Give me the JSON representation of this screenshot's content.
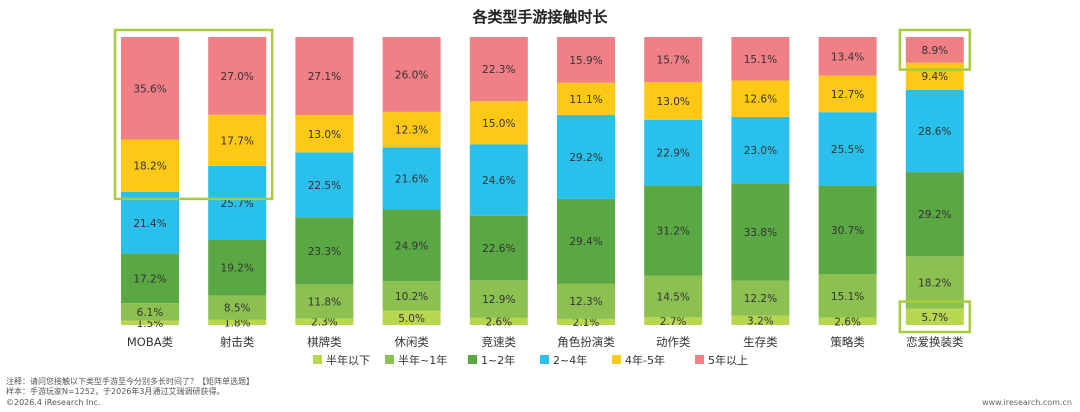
{
  "chart_data": {
    "type": "bar",
    "stacked": true,
    "percent": true,
    "title": "各类型手游接触时长",
    "categories": [
      "MOBA类",
      "射击类",
      "棋牌类",
      "休闲类",
      "竞速类",
      "角色扮演类",
      "动作类",
      "生存类",
      "策略类",
      "恋爱换装类"
    ],
    "series": [
      {
        "name": "半年以下",
        "color": "#b9d651",
        "values": [
          1.5,
          1.8,
          2.3,
          5.0,
          2.6,
          2.1,
          2.7,
          3.2,
          2.6,
          5.7
        ]
      },
      {
        "name": "半年~1年",
        "color": "#8cc152",
        "values": [
          6.1,
          8.5,
          11.8,
          10.2,
          12.9,
          12.3,
          14.5,
          12.2,
          15.1,
          18.2
        ]
      },
      {
        "name": "1~2年",
        "color": "#5aa844",
        "values": [
          17.2,
          19.2,
          23.3,
          24.9,
          22.6,
          29.4,
          31.2,
          33.8,
          30.7,
          29.2
        ]
      },
      {
        "name": "2~4年",
        "color": "#29c1ec",
        "values": [
          21.4,
          25.7,
          22.5,
          21.6,
          24.6,
          29.2,
          22.9,
          23.0,
          25.5,
          28.6
        ]
      },
      {
        "name": "4年-5年",
        "color": "#fdc816",
        "values": [
          18.2,
          17.7,
          13.0,
          12.3,
          15.0,
          11.1,
          13.0,
          12.6,
          12.7,
          9.4
        ]
      },
      {
        "name": "5年以上",
        "color": "#f07f86",
        "values": [
          35.6,
          27.0,
          27.1,
          26.0,
          22.3,
          15.9,
          15.7,
          15.1,
          13.4,
          8.9
        ]
      }
    ],
    "value_labels": {
      "半年以下": [
        "1.5%",
        "1.8%",
        "2.3%",
        "5.0%",
        "2.6%",
        "2.1%",
        "2.7%",
        "3.2%",
        "2.6%",
        "5.7%"
      ],
      "半年~1年": [
        "6.1%",
        "8.5%",
        "11.8%",
        "10.2%",
        "12.9%",
        "12.3%",
        "14.5%",
        "12.2%",
        "15.1%",
        "18.2%"
      ],
      "1~2年": [
        "17.2%",
        "19.2%",
        "23.3%",
        "24.9%",
        "22.6%",
        "29.4%",
        "31.2%",
        "33.8%",
        "30.7%",
        "29.2%"
      ],
      "2~4年": [
        "21.4%",
        "25.7%",
        "22.5%",
        "21.6%",
        "24.6%",
        "29.2%",
        "22.9%",
        "23.0%",
        "25.5%",
        "28.6%"
      ],
      "4年-5年": [
        "18.2%",
        "17.7%",
        "13.0%",
        "12.3%",
        "15.0%",
        "11.1%",
        "13.0%",
        "12.6%",
        "12.7%",
        "9.4%"
      ],
      "5年以上": [
        "35.6%",
        "27.0%",
        "27.1%",
        "26.0%",
        "22.3%",
        "15.9%",
        "15.7%",
        "15.1%",
        "13.4%",
        "8.9%"
      ]
    },
    "ylim": [
      0,
      100
    ],
    "grid": false,
    "legend_position": "bottom",
    "highlight_color": "#a8cc3c",
    "highlights": [
      {
        "categories": [
          "MOBA类",
          "射击类"
        ],
        "series": [
          "4年-5年",
          "5年以上"
        ]
      },
      {
        "categories": [
          "恋爱换装类"
        ],
        "series": [
          "5年以上"
        ]
      },
      {
        "categories": [
          "恋爱换装类"
        ],
        "series": [
          "半年以下"
        ]
      }
    ]
  },
  "notes": {
    "note": "注释：请问您接触以下类型手游至今分别多长时间了？【矩阵单选题】",
    "sample": "样本：手游玩家N=1252，于2026年3月通过艾瑞调研获得。",
    "copyright": "©2026.4 iResearch Inc.",
    "website": "www.iresearch.com.cn"
  }
}
